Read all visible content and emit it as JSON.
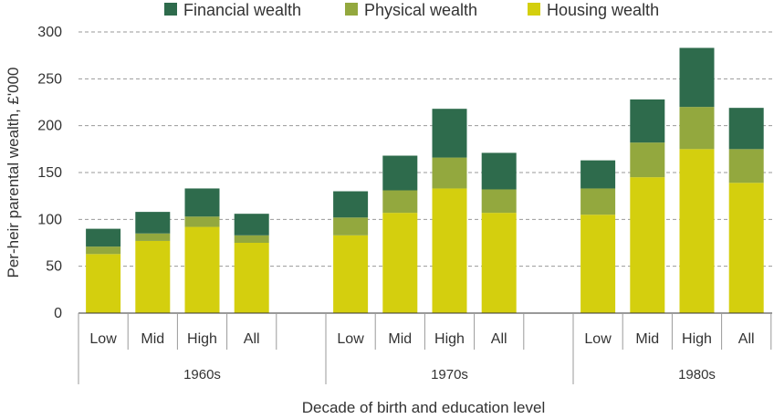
{
  "chart_data": {
    "type": "bar",
    "stacked": true,
    "title": "",
    "xlabel": "Decade of birth and education level",
    "ylabel": "Per-heir parental wealth, £'000",
    "ylim": [
      0,
      300
    ],
    "yticks": [
      0,
      50,
      100,
      150,
      200,
      250,
      300
    ],
    "grid": "horizontal dashed",
    "legend_position": "top",
    "groups": [
      {
        "label": "1960s",
        "categories": [
          "Low",
          "Mid",
          "High",
          "All"
        ]
      },
      {
        "label": "1970s",
        "categories": [
          "Low",
          "Mid",
          "High",
          "All"
        ]
      },
      {
        "label": "1980s",
        "categories": [
          "Low",
          "Mid",
          "High",
          "All"
        ]
      }
    ],
    "series": [
      {
        "name": "Housing wealth",
        "color": "#d4cf0e",
        "values": [
          63,
          77,
          92,
          75,
          83,
          107,
          133,
          107,
          105,
          145,
          175,
          139
        ]
      },
      {
        "name": "Physical wealth",
        "color": "#93a83e",
        "values": [
          8,
          8,
          11,
          8,
          19,
          24,
          33,
          25,
          28,
          37,
          45,
          36
        ]
      },
      {
        "name": "Financial wealth",
        "color": "#2e6b4c",
        "values": [
          19,
          23,
          30,
          23,
          28,
          37,
          52,
          39,
          30,
          46,
          63,
          44
        ]
      }
    ],
    "legend_order": [
      "Financial wealth",
      "Physical wealth",
      "Housing wealth"
    ]
  }
}
